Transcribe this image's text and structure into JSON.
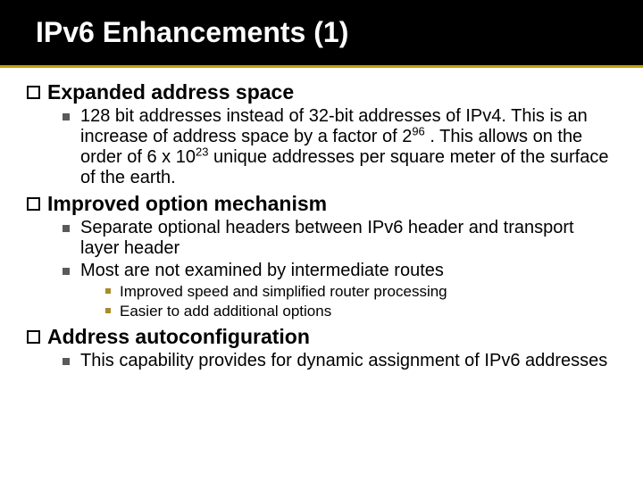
{
  "title": "IPv6 Enhancements (1)",
  "colors": {
    "title_bg": "#000000",
    "title_underline": "#c0a000",
    "l1_bullet": "#5a5a5a",
    "l2_bullet": "#a88c2c"
  },
  "sections": [
    {
      "heading": "Expanded address space",
      "items": [
        {
          "html": "128 bit addresses instead of 32-bit addresses of IPv4. This is an increase of address space by a factor of 2<sup>96</sup> . This allows on the order of 6 x 10<sup>23</sup> unique addresses per square meter of the surface of the earth."
        }
      ]
    },
    {
      "heading": "Improved option mechanism",
      "items": [
        {
          "html": "Separate optional headers between IPv6 header and transport layer header"
        },
        {
          "html": "Most are not examined by intermediate routes",
          "sub": [
            "Improved speed and simplified router processing",
            "Easier to add additional options"
          ]
        }
      ]
    },
    {
      "heading": "Address autoconfiguration",
      "items": [
        {
          "html": "This capability provides for dynamic assignment of IPv6 addresses"
        }
      ]
    }
  ]
}
